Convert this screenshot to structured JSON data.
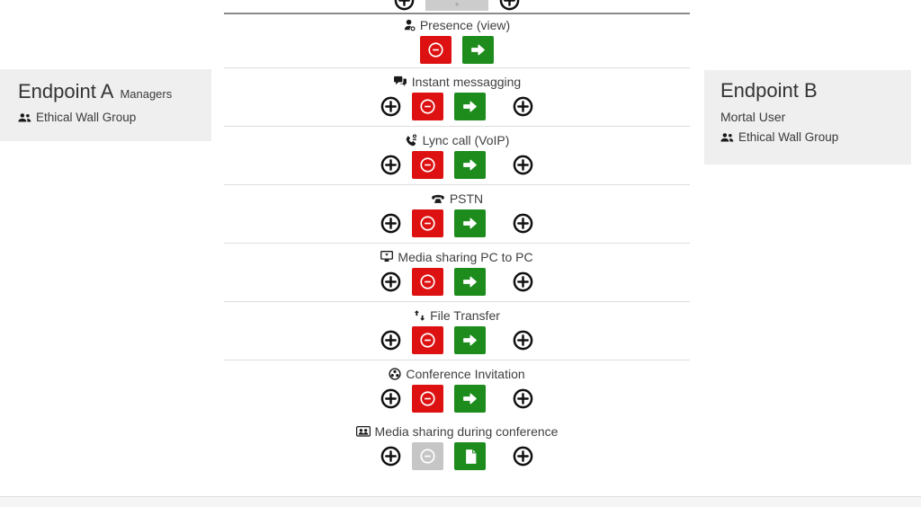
{
  "colors": {
    "block_red": "#dd1111",
    "allow_green": "#1d8c1d",
    "disabled_gray": "#c6c6c6",
    "panel_bg": "#efefef",
    "divider_light": "#dddddd",
    "divider_dark": "#8a8a8a",
    "text": "#3f3f3f"
  },
  "endpoint_a": {
    "title": "Endpoint A",
    "subtitle": "Managers",
    "group_icon": "users-icon",
    "group_label": "Ethical Wall Group"
  },
  "endpoint_b": {
    "title": "Endpoint B",
    "user_label": "Mortal User",
    "group_icon": "users-icon",
    "group_label": "Ethical Wall Group"
  },
  "partial_row": {
    "buttons": [
      "add",
      "disabled-wide",
      "add"
    ]
  },
  "features": [
    {
      "label": "Presence (view)",
      "icon": "presence-icon",
      "buttons": [
        "block",
        "allow"
      ],
      "divider_after": true
    },
    {
      "label": "Instant messagging",
      "icon": "chat-icon",
      "buttons": [
        "add",
        "block",
        "allow",
        "add"
      ],
      "divider_after": true
    },
    {
      "label": "Lync call (VoIP)",
      "icon": "phone-icon",
      "buttons": [
        "add",
        "block",
        "allow",
        "add"
      ],
      "divider_after": true
    },
    {
      "label": "PSTN",
      "icon": "telephone-icon",
      "buttons": [
        "add",
        "block",
        "allow",
        "add"
      ],
      "divider_after": true
    },
    {
      "label": "Media sharing PC to PC",
      "icon": "desktop-icon",
      "buttons": [
        "add",
        "block",
        "allow",
        "add"
      ],
      "divider_after": true
    },
    {
      "label": "File Transfer",
      "icon": "transfer-icon",
      "buttons": [
        "add",
        "block",
        "allow",
        "add"
      ],
      "divider_after": true
    },
    {
      "label": "Conference Invitation",
      "icon": "conference-icon",
      "buttons": [
        "add",
        "block",
        "allow",
        "add"
      ],
      "divider_after": false
    },
    {
      "label": "Media sharing during conference",
      "icon": "media-conference-icon",
      "buttons": [
        "add",
        "block-disabled",
        "allow-file",
        "add"
      ],
      "divider_after": false
    }
  ]
}
